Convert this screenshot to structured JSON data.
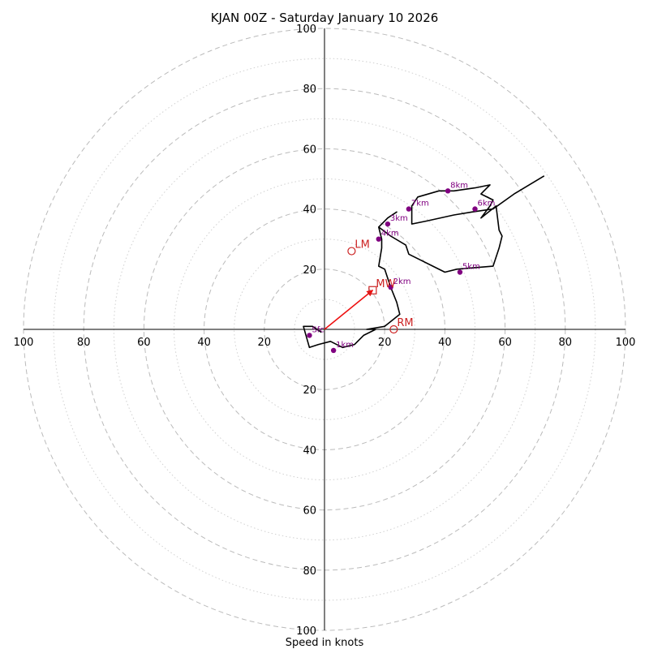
{
  "chart_data": {
    "type": "hodograph",
    "title": "KJAN 00Z - Saturday January 10 2026",
    "xlabel": "Speed in knots",
    "ylabel": "",
    "xlim": [
      -100,
      100
    ],
    "ylim": [
      -100,
      100
    ],
    "major_rings": [
      20,
      40,
      60,
      80,
      100
    ],
    "minor_rings": [
      10,
      30,
      50,
      70,
      90
    ],
    "tick_labels": {
      "left": [
        "100",
        "80",
        "60",
        "40",
        "20"
      ],
      "right": [
        "20",
        "40",
        "60",
        "80",
        "100"
      ],
      "top": [
        "20",
        "40",
        "60",
        "80",
        "100"
      ],
      "bottom": [
        "20",
        "40",
        "60",
        "80",
        "100"
      ]
    },
    "trace": [
      [
        -1,
        -1
      ],
      [
        -4,
        1
      ],
      [
        -7,
        1
      ],
      [
        -5,
        -6
      ],
      [
        -2,
        -5
      ],
      [
        2,
        -4
      ],
      [
        6,
        -6
      ],
      [
        10,
        -5
      ],
      [
        13,
        -2
      ],
      [
        17,
        0
      ],
      [
        14,
        0
      ],
      [
        20,
        1
      ],
      [
        25,
        5
      ],
      [
        24,
        9
      ],
      [
        22,
        14
      ],
      [
        20,
        20
      ],
      [
        18,
        21
      ],
      [
        19,
        27
      ],
      [
        19,
        30
      ],
      [
        18,
        34
      ],
      [
        21,
        37
      ],
      [
        24,
        39
      ],
      [
        21,
        37
      ],
      [
        18,
        34
      ],
      [
        22,
        31
      ],
      [
        27,
        28
      ],
      [
        28,
        25
      ],
      [
        32,
        23
      ],
      [
        36,
        21
      ],
      [
        40,
        19
      ],
      [
        44,
        20
      ],
      [
        56,
        21
      ],
      [
        58,
        27
      ],
      [
        59,
        31
      ],
      [
        58,
        33
      ],
      [
        57,
        41
      ],
      [
        52,
        37
      ],
      [
        55,
        41
      ],
      [
        56,
        43
      ],
      [
        52,
        45
      ],
      [
        54,
        47
      ],
      [
        55,
        48
      ],
      [
        50,
        47
      ],
      [
        43,
        46
      ],
      [
        38,
        46
      ],
      [
        31,
        44
      ],
      [
        29,
        41
      ],
      [
        29,
        35
      ],
      [
        34,
        36
      ],
      [
        43,
        38
      ],
      [
        49,
        39
      ],
      [
        56,
        40
      ],
      [
        63,
        45
      ],
      [
        73,
        51
      ]
    ],
    "height_markers": [
      {
        "label": "Sfc",
        "u": -5,
        "v": -2
      },
      {
        "label": "1km",
        "u": 3,
        "v": -7
      },
      {
        "label": "2km",
        "u": 22,
        "v": 14
      },
      {
        "label": "3km",
        "u": 21,
        "v": 35
      },
      {
        "label": "4km",
        "u": 18,
        "v": 30
      },
      {
        "label": "5km",
        "u": 45,
        "v": 19
      },
      {
        "label": "6km",
        "u": 50,
        "v": 40
      },
      {
        "label": "7km",
        "u": 28,
        "v": 40
      },
      {
        "label": "8km",
        "u": 41,
        "v": 46
      }
    ],
    "motions": [
      {
        "label": "LM",
        "u": 9,
        "v": 26,
        "marker": "circle"
      },
      {
        "label": "MW",
        "u": 16,
        "v": 13,
        "marker": "square"
      },
      {
        "label": "RM",
        "u": 23,
        "v": 0,
        "marker": "circle"
      }
    ],
    "shear_vector": {
      "from": [
        0,
        0
      ],
      "to": [
        16,
        13
      ]
    },
    "colors": {
      "trace": "#000000",
      "height_markers": "#800080",
      "motions": "#cc2222",
      "shear_vector": "#ee1111",
      "rings": "#bbbbbb",
      "axes": "#000000"
    }
  }
}
